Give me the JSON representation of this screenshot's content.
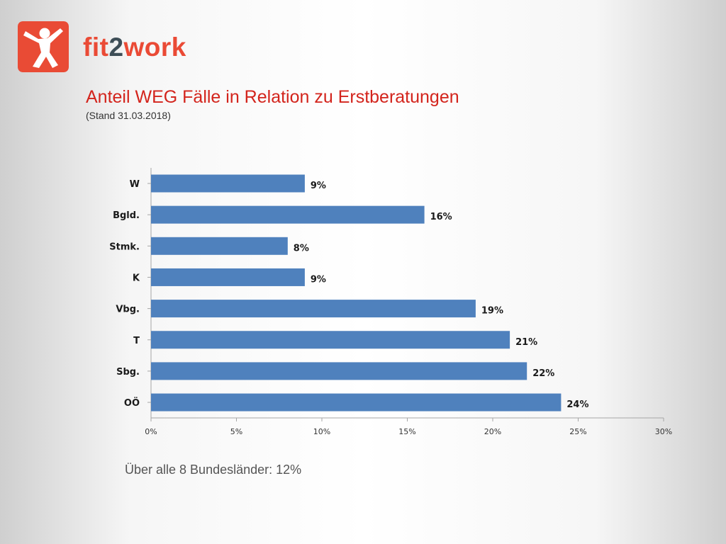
{
  "brand": {
    "part1": "fit",
    "part2": "2",
    "part3": "work",
    "logo_icon": "person-jumping-icon",
    "logo_color": "#e94b35"
  },
  "slide": {
    "title": "Anteil WEG Fälle in Relation zu Erstberatungen",
    "subtitle": "(Stand 31.03.2018)",
    "footnote": "Über alle 8 Bundesländer: 12%"
  },
  "colors": {
    "title": "#d3241c",
    "bar": "#4f81bd"
  },
  "chart_data": {
    "type": "bar",
    "orientation": "horizontal",
    "categories": [
      "W",
      "Bgld.",
      "Stmk.",
      "K",
      "Vbg.",
      "T",
      "Sbg.",
      "OÖ"
    ],
    "values": [
      9,
      16,
      8,
      9,
      19,
      21,
      22,
      24
    ],
    "value_labels": [
      "9%",
      "16%",
      "8%",
      "9%",
      "19%",
      "21%",
      "22%",
      "24%"
    ],
    "unit": "%",
    "xlim": [
      0,
      30
    ],
    "xticks": [
      0,
      5,
      10,
      15,
      20,
      25,
      30
    ],
    "xtick_labels": [
      "0%",
      "5%",
      "10%",
      "15%",
      "20%",
      "25%",
      "30%"
    ],
    "grid": false,
    "legend": "none"
  }
}
